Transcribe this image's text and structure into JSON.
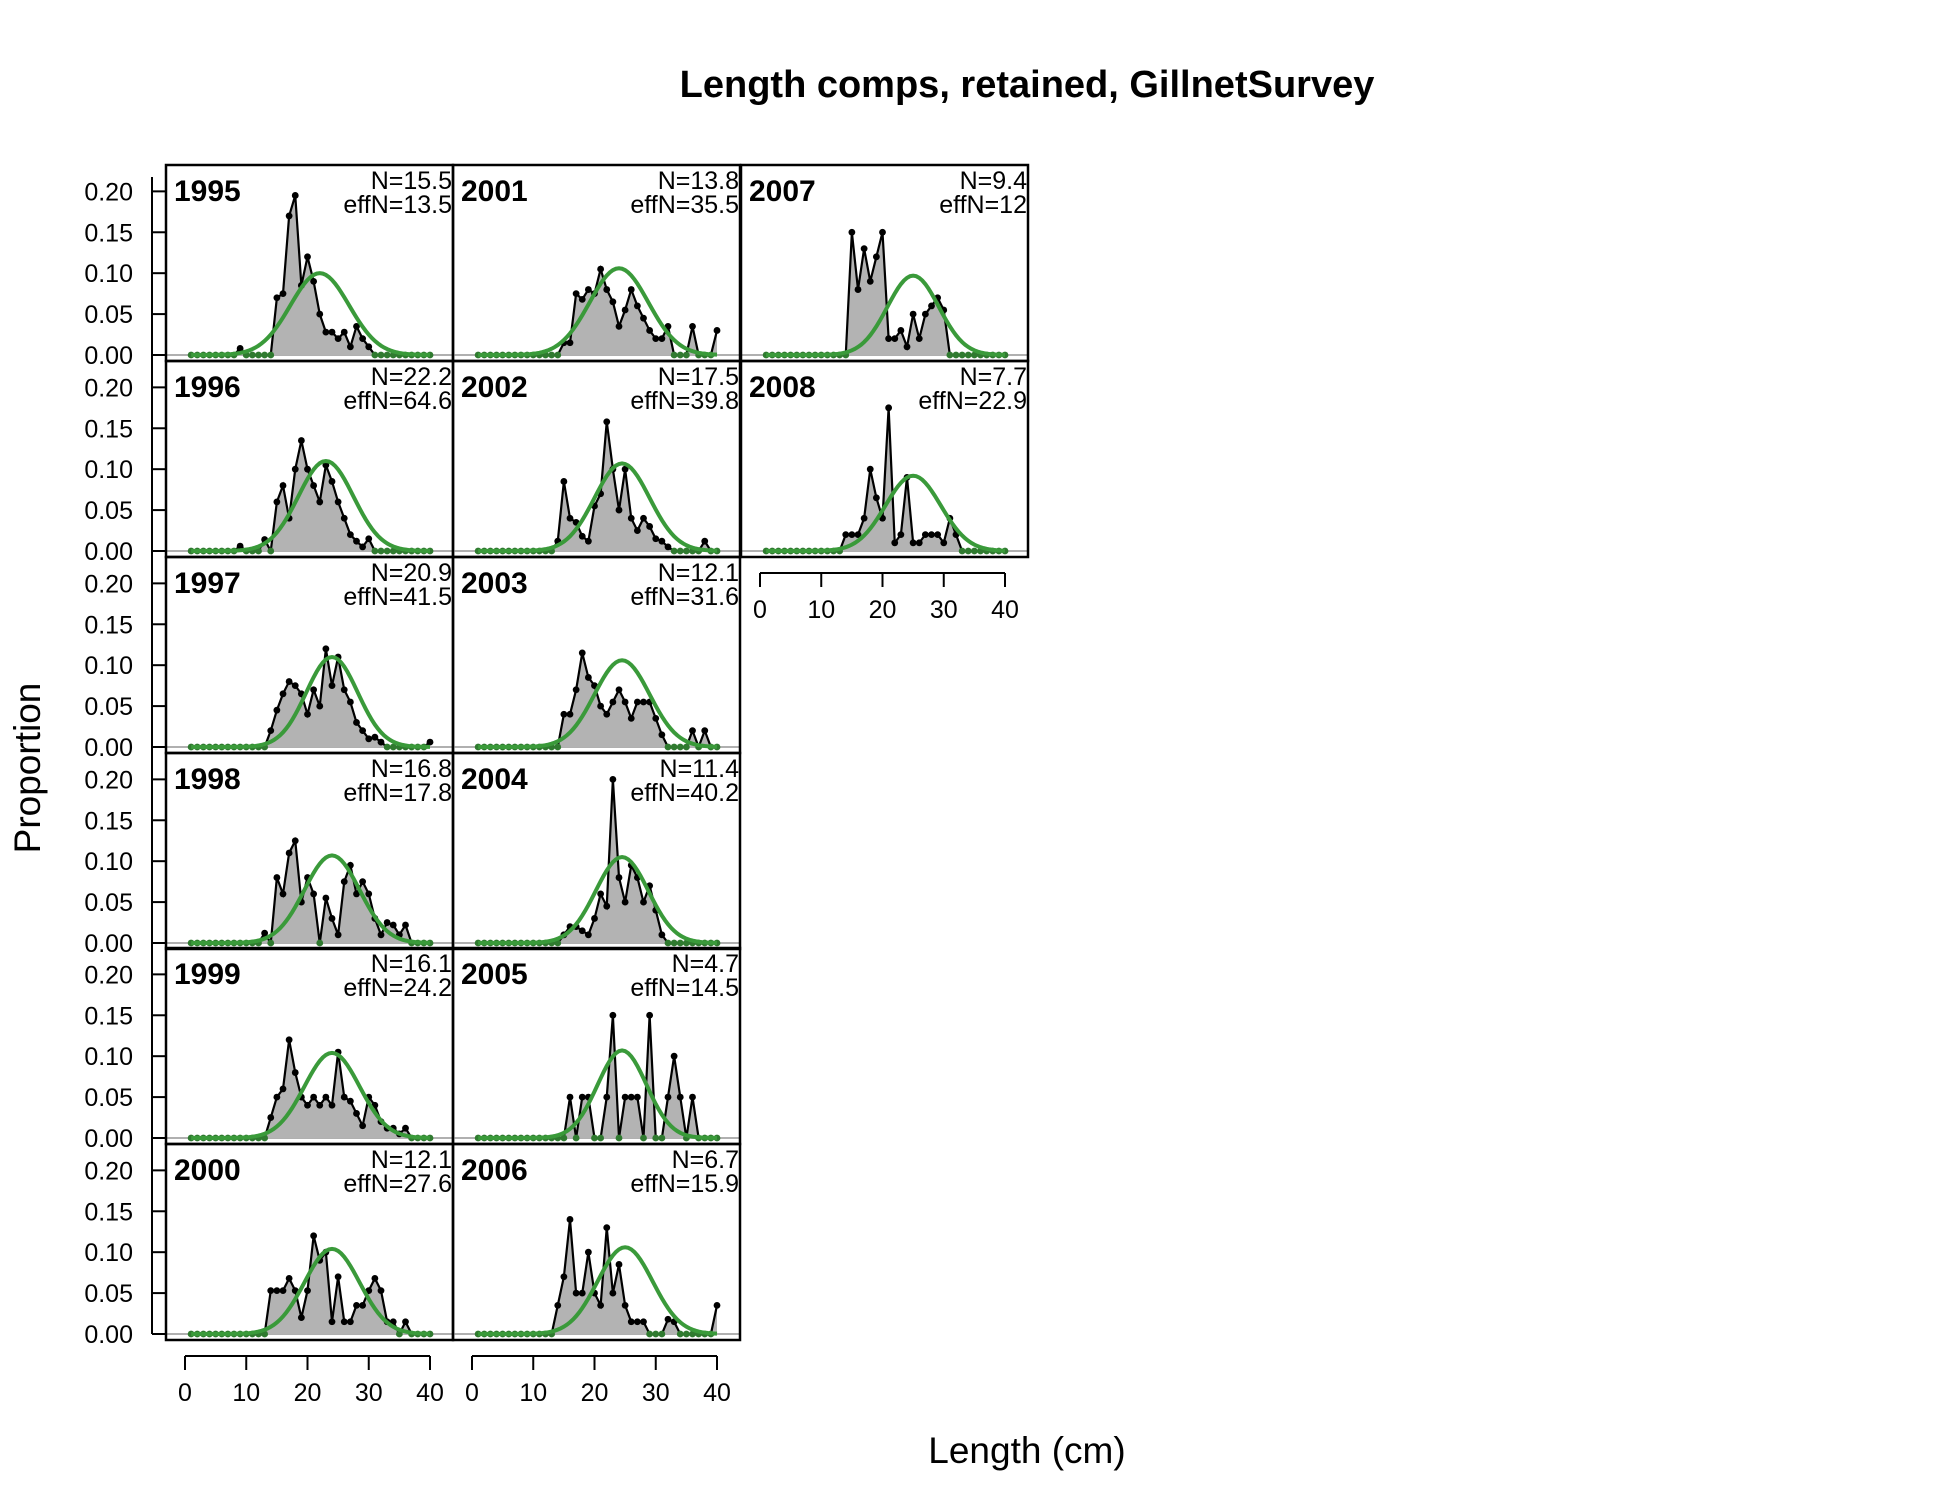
{
  "chart_data": {
    "type": "line",
    "title": "Length comps, retained, GillnetSurvey",
    "xlabel": "Length (cm)",
    "ylabel": "Proportion",
    "xlim": [
      0,
      40
    ],
    "ylim": [
      0,
      0.22
    ],
    "x_ticks": [
      "0",
      "10",
      "20",
      "30",
      "40"
    ],
    "y_ticks": [
      "0.00",
      "0.05",
      "0.10",
      "0.15",
      "0.20"
    ],
    "colors": {
      "observed_fill": "#b3b3b3",
      "observed_line": "#000000",
      "expected_line": "#3a9a3a",
      "point": "#000000",
      "zero_point": "#2f7a2f"
    },
    "x": [
      1,
      2,
      3,
      4,
      5,
      6,
      7,
      8,
      9,
      10,
      11,
      12,
      13,
      14,
      15,
      16,
      17,
      18,
      19,
      20,
      21,
      22,
      23,
      24,
      25,
      26,
      27,
      28,
      29,
      30,
      31,
      32,
      33,
      34,
      35,
      36,
      37,
      38,
      39,
      40
    ],
    "panels": [
      {
        "year": "1995",
        "n": "N=15.5",
        "effn": "effN=13.5",
        "mean": 22,
        "sd": 4.8,
        "amp": 0.1,
        "obs": [
          0,
          0,
          0,
          0,
          0,
          0,
          0,
          0,
          0.008,
          0,
          0,
          0,
          0,
          0,
          0.07,
          0.075,
          0.17,
          0.195,
          0.085,
          0.12,
          0.09,
          0.05,
          0.028,
          0.028,
          0.02,
          0.028,
          0.01,
          0.035,
          0.02,
          0.01,
          0,
          0,
          0,
          0,
          0,
          0,
          0,
          0,
          0,
          0
        ]
      },
      {
        "year": "1996",
        "n": "N=22.2",
        "effn": "effN=64.6",
        "mean": 23,
        "sd": 4.5,
        "amp": 0.11,
        "obs": [
          0,
          0,
          0,
          0,
          0,
          0,
          0,
          0,
          0.006,
          0,
          0,
          0,
          0.014,
          0,
          0.06,
          0.08,
          0.04,
          0.1,
          0.135,
          0.1,
          0.08,
          0.06,
          0.105,
          0.085,
          0.06,
          0.04,
          0.02,
          0.012,
          0.005,
          0.015,
          0,
          0,
          0,
          0,
          0,
          0,
          0,
          0,
          0,
          0
        ]
      },
      {
        "year": "1997",
        "n": "N=20.9",
        "effn": "effN=41.5",
        "mean": 24,
        "sd": 4.2,
        "amp": 0.11,
        "obs": [
          0,
          0,
          0,
          0,
          0,
          0,
          0,
          0,
          0,
          0,
          0,
          0,
          0,
          0.02,
          0.045,
          0.065,
          0.08,
          0.075,
          0.065,
          0.04,
          0.07,
          0.05,
          0.12,
          0.075,
          0.11,
          0.07,
          0.055,
          0.03,
          0.02,
          0.01,
          0.012,
          0.006,
          0,
          0,
          0,
          0,
          0,
          0,
          0,
          0.006
        ]
      },
      {
        "year": "1998",
        "n": "N=16.8",
        "effn": "effN=17.8",
        "mean": 24,
        "sd": 4.5,
        "amp": 0.107,
        "obs": [
          0,
          0,
          0,
          0,
          0,
          0,
          0,
          0,
          0,
          0,
          0,
          0,
          0.012,
          0,
          0.08,
          0.06,
          0.11,
          0.125,
          0.05,
          0.08,
          0.06,
          0,
          0.055,
          0.03,
          0.01,
          0.075,
          0.095,
          0.06,
          0.075,
          0.06,
          0.03,
          0.01,
          0.025,
          0.022,
          0.01,
          0.022,
          0,
          0,
          0,
          0
        ]
      },
      {
        "year": "1999",
        "n": "N=16.1",
        "effn": "effN=24.2",
        "mean": 24,
        "sd": 4.5,
        "amp": 0.104,
        "obs": [
          0,
          0,
          0,
          0,
          0,
          0,
          0,
          0,
          0,
          0,
          0,
          0,
          0,
          0.025,
          0.05,
          0.06,
          0.12,
          0.08,
          0.05,
          0.04,
          0.05,
          0.04,
          0.05,
          0.04,
          0.105,
          0.05,
          0.045,
          0.03,
          0.015,
          0.05,
          0.04,
          0.02,
          0.012,
          0.012,
          0.005,
          0.012,
          0,
          0,
          0,
          0
        ]
      },
      {
        "year": "2000",
        "n": "N=12.1",
        "effn": "effN=27.6",
        "mean": 24,
        "sd": 4.5,
        "amp": 0.104,
        "obs": [
          0,
          0,
          0,
          0,
          0,
          0,
          0,
          0,
          0,
          0,
          0,
          0,
          0,
          0.053,
          0.053,
          0.053,
          0.068,
          0.053,
          0.02,
          0.053,
          0.12,
          0.09,
          0.1,
          0.015,
          0.07,
          0.015,
          0.015,
          0.035,
          0.035,
          0.053,
          0.068,
          0.053,
          0.015,
          0.015,
          0,
          0.015,
          0,
          0,
          0,
          0
        ]
      },
      {
        "year": "2001",
        "n": "N=13.8",
        "effn": "effN=35.5",
        "mean": 24,
        "sd": 4.8,
        "amp": 0.106,
        "obs": [
          0,
          0,
          0,
          0,
          0,
          0,
          0,
          0,
          0,
          0,
          0,
          0,
          0,
          0,
          0.015,
          0.015,
          0.075,
          0.068,
          0.08,
          0.075,
          0.105,
          0.08,
          0.065,
          0.035,
          0.055,
          0.08,
          0.06,
          0.045,
          0.03,
          0.02,
          0.02,
          0.035,
          0,
          0,
          0,
          0.035,
          0,
          0,
          0,
          0.03
        ]
      },
      {
        "year": "2002",
        "n": "N=17.5",
        "effn": "effN=39.8",
        "mean": 24.5,
        "sd": 4.5,
        "amp": 0.107,
        "obs": [
          0,
          0,
          0,
          0,
          0,
          0,
          0,
          0,
          0,
          0,
          0,
          0,
          0,
          0.012,
          0.085,
          0.04,
          0.035,
          0.018,
          0.012,
          0.055,
          0.07,
          0.158,
          0.1,
          0.05,
          0.1,
          0.04,
          0.025,
          0.04,
          0.03,
          0.015,
          0.012,
          0.005,
          0,
          0,
          0,
          0,
          0,
          0.012,
          0,
          0
        ]
      },
      {
        "year": "2003",
        "n": "N=12.1",
        "effn": "effN=31.6",
        "mean": 24.5,
        "sd": 4.5,
        "amp": 0.106,
        "obs": [
          0,
          0,
          0,
          0,
          0,
          0,
          0,
          0,
          0,
          0,
          0,
          0,
          0,
          0,
          0.04,
          0.04,
          0.07,
          0.115,
          0.085,
          0.075,
          0.05,
          0.04,
          0.055,
          0.07,
          0.055,
          0.035,
          0.055,
          0.055,
          0.055,
          0.035,
          0.015,
          0,
          0,
          0,
          0,
          0.02,
          0,
          0.02,
          0,
          0
        ]
      },
      {
        "year": "2004",
        "n": "N=11.4",
        "effn": "effN=40.2",
        "mean": 24.5,
        "sd": 4.3,
        "amp": 0.105,
        "obs": [
          0,
          0,
          0,
          0,
          0,
          0,
          0,
          0,
          0,
          0,
          0,
          0,
          0,
          0,
          0.01,
          0.02,
          0.02,
          0.015,
          0.01,
          0.03,
          0.06,
          0.045,
          0.2,
          0.08,
          0.05,
          0.095,
          0.08,
          0.05,
          0.07,
          0.04,
          0.01,
          0,
          0,
          0,
          0,
          0,
          0,
          0,
          0,
          0
        ]
      },
      {
        "year": "2005",
        "n": "N=4.7",
        "effn": "effN=14.5",
        "mean": 24.5,
        "sd": 4.0,
        "amp": 0.107,
        "obs": [
          0,
          0,
          0,
          0,
          0,
          0,
          0,
          0,
          0,
          0,
          0,
          0,
          0,
          0,
          0,
          0.05,
          0,
          0.05,
          0.05,
          0,
          0,
          0.05,
          0.15,
          0,
          0.05,
          0.05,
          0.05,
          0,
          0.15,
          0,
          0,
          0.05,
          0.1,
          0.05,
          0,
          0.05,
          0,
          0,
          0,
          0
        ]
      },
      {
        "year": "2006",
        "n": "N=6.7",
        "effn": "effN=15.9",
        "mean": 25,
        "sd": 4.5,
        "amp": 0.106,
        "obs": [
          0,
          0,
          0,
          0,
          0,
          0,
          0,
          0,
          0,
          0,
          0,
          0,
          0,
          0.035,
          0.07,
          0.14,
          0.05,
          0.05,
          0.1,
          0.05,
          0.035,
          0.13,
          0.05,
          0.085,
          0.035,
          0.015,
          0.015,
          0.015,
          0,
          0,
          0,
          0.018,
          0.015,
          0,
          0,
          0,
          0,
          0,
          0,
          0.035
        ]
      },
      {
        "year": "2007",
        "n": "N=9.4",
        "effn": "effN=12",
        "mean": 25,
        "sd": 4.2,
        "amp": 0.097,
        "obs": [
          0,
          0,
          0,
          0,
          0,
          0,
          0,
          0,
          0,
          0,
          0,
          0,
          0,
          0,
          0.15,
          0.08,
          0.13,
          0.09,
          0.12,
          0.15,
          0.02,
          0.02,
          0.03,
          0.01,
          0.05,
          0.02,
          0.05,
          0.06,
          0.07,
          0.055,
          0,
          0,
          0,
          0,
          0,
          0,
          0,
          0,
          0,
          0
        ]
      },
      {
        "year": "2008",
        "n": "N=7.7",
        "effn": "effN=22.9",
        "mean": 25,
        "sd": 4.5,
        "amp": 0.092,
        "obs": [
          0,
          0,
          0,
          0,
          0,
          0,
          0,
          0,
          0,
          0,
          0,
          0,
          0,
          0.02,
          0.02,
          0.02,
          0.04,
          0.1,
          0.065,
          0.04,
          0.175,
          0.01,
          0.02,
          0.09,
          0.01,
          0.01,
          0.02,
          0.02,
          0.02,
          0.01,
          0.04,
          0.02,
          0,
          0,
          0,
          0,
          0,
          0,
          0,
          0
        ]
      }
    ]
  }
}
